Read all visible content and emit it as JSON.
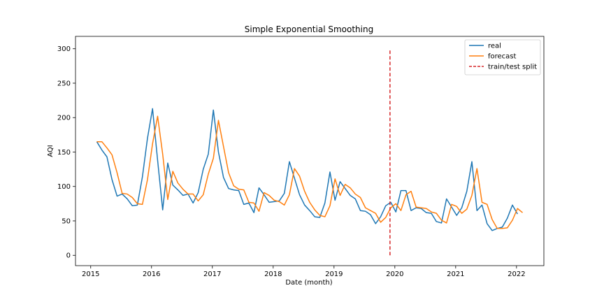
{
  "chart_data": {
    "type": "line",
    "title": "Simple Exponential Smoothing",
    "xlabel": "Date (month)",
    "ylabel": "AQI",
    "xlim": [
      2014.75,
      2022.45
    ],
    "ylim": [
      -15,
      318
    ],
    "xticks": [
      2015,
      2016,
      2017,
      2018,
      2019,
      2020,
      2021,
      2022
    ],
    "yticks": [
      0,
      50,
      100,
      150,
      200,
      250,
      300
    ],
    "grid": false,
    "legend_position": "top-right",
    "series": [
      {
        "name": "real",
        "color": "#1f77b4",
        "x_start": 2015.1,
        "step": 0.08333,
        "values": [
          165,
          153,
          143,
          110,
          86,
          89,
          82,
          72,
          73,
          114,
          170,
          213,
          138,
          66,
          134,
          102,
          95,
          87,
          89,
          76,
          91,
          125,
          147,
          211,
          150,
          113,
          97,
          95,
          94,
          74,
          76,
          62,
          98,
          88,
          77,
          78,
          79,
          90,
          136,
          112,
          88,
          73,
          65,
          56,
          55,
          76,
          121,
          80,
          107,
          97,
          87,
          82,
          65,
          64,
          59,
          46,
          56,
          72,
          77,
          63,
          94,
          94,
          65,
          69,
          68,
          62,
          61,
          49,
          47,
          82,
          70,
          58,
          69,
          93,
          136,
          65,
          73,
          46,
          36,
          39,
          41,
          54,
          73,
          60
        ]
      },
      {
        "name": "forecast",
        "color": "#ff7f0e",
        "x_start": 2015.1,
        "step": 0.08333,
        "values": [
          165,
          165,
          156,
          146,
          120,
          90,
          89,
          84,
          75,
          74,
          110,
          162,
          202,
          147,
          81,
          122,
          105,
          96,
          89,
          89,
          79,
          88,
          118,
          141,
          196,
          158,
          120,
          101,
          96,
          95,
          77,
          76,
          64,
          91,
          87,
          80,
          78,
          73,
          88,
          126,
          115,
          93,
          77,
          66,
          58,
          56,
          72,
          111,
          87,
          103,
          98,
          89,
          84,
          69,
          65,
          61,
          48,
          55,
          69,
          75,
          65,
          88,
          93,
          70,
          69,
          68,
          63,
          61,
          51,
          47,
          74,
          71,
          61,
          67,
          87,
          126,
          77,
          74,
          52,
          39,
          39,
          40,
          51,
          68,
          62
        ]
      },
      {
        "name": "train/test split",
        "color": "#d62728",
        "dashed": true,
        "x": [
          2019.92,
          2019.92
        ],
        "y": [
          0,
          300
        ]
      }
    ]
  }
}
